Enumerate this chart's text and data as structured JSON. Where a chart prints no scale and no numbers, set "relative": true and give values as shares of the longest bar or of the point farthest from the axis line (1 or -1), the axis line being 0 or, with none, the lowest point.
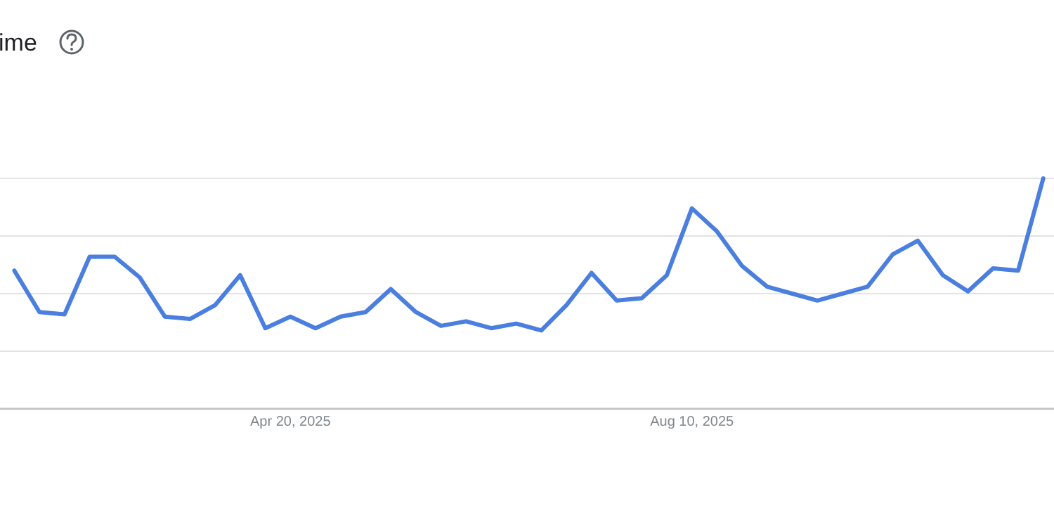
{
  "chart_data": {
    "type": "line",
    "title": "ime",
    "relative": true,
    "grid": "y",
    "x": [
      "2025-02-02",
      "2025-02-09",
      "2025-02-16",
      "2025-02-23",
      "2025-03-02",
      "2025-03-09",
      "2025-03-16",
      "2025-03-23",
      "2025-03-30",
      "2025-04-06",
      "2025-04-13",
      "2025-04-20",
      "2025-04-27",
      "2025-05-04",
      "2025-05-11",
      "2025-05-18",
      "2025-05-25",
      "2025-06-01",
      "2025-06-08",
      "2025-06-15",
      "2025-06-22",
      "2025-06-29",
      "2025-07-06",
      "2025-07-13",
      "2025-07-20",
      "2025-07-27",
      "2025-08-03",
      "2025-08-10",
      "2025-08-17",
      "2025-08-24",
      "2025-08-31",
      "2025-09-07",
      "2025-09-14",
      "2025-09-21",
      "2025-09-28",
      "2025-10-05",
      "2025-10-12",
      "2025-10-19",
      "2025-10-26",
      "2025-11-02",
      "2025-11-09",
      "2025-11-16"
    ],
    "xlim": [
      "2025-01-29",
      "2025-11-19"
    ],
    "xticks": [
      {
        "value": "2025-04-20",
        "label": "Apr 20, 2025"
      },
      {
        "value": "2025-08-10",
        "label": "Aug 10, 2025"
      }
    ],
    "series": [
      {
        "color": "#4a7fe0",
        "values": [
          0.6,
          0.42,
          0.41,
          0.66,
          0.66,
          0.57,
          0.4,
          0.39,
          0.45,
          0.58,
          0.35,
          0.4,
          0.35,
          0.4,
          0.42,
          0.52,
          0.42,
          0.36,
          0.38,
          0.35,
          0.37,
          0.34,
          0.45,
          0.59,
          0.47,
          0.48,
          0.58,
          0.87,
          0.77,
          0.62,
          0.53,
          0.5,
          0.47,
          0.5,
          0.53,
          0.67,
          0.73,
          0.58,
          0.51,
          0.61,
          0.6,
          1
        ]
      }
    ]
  }
}
